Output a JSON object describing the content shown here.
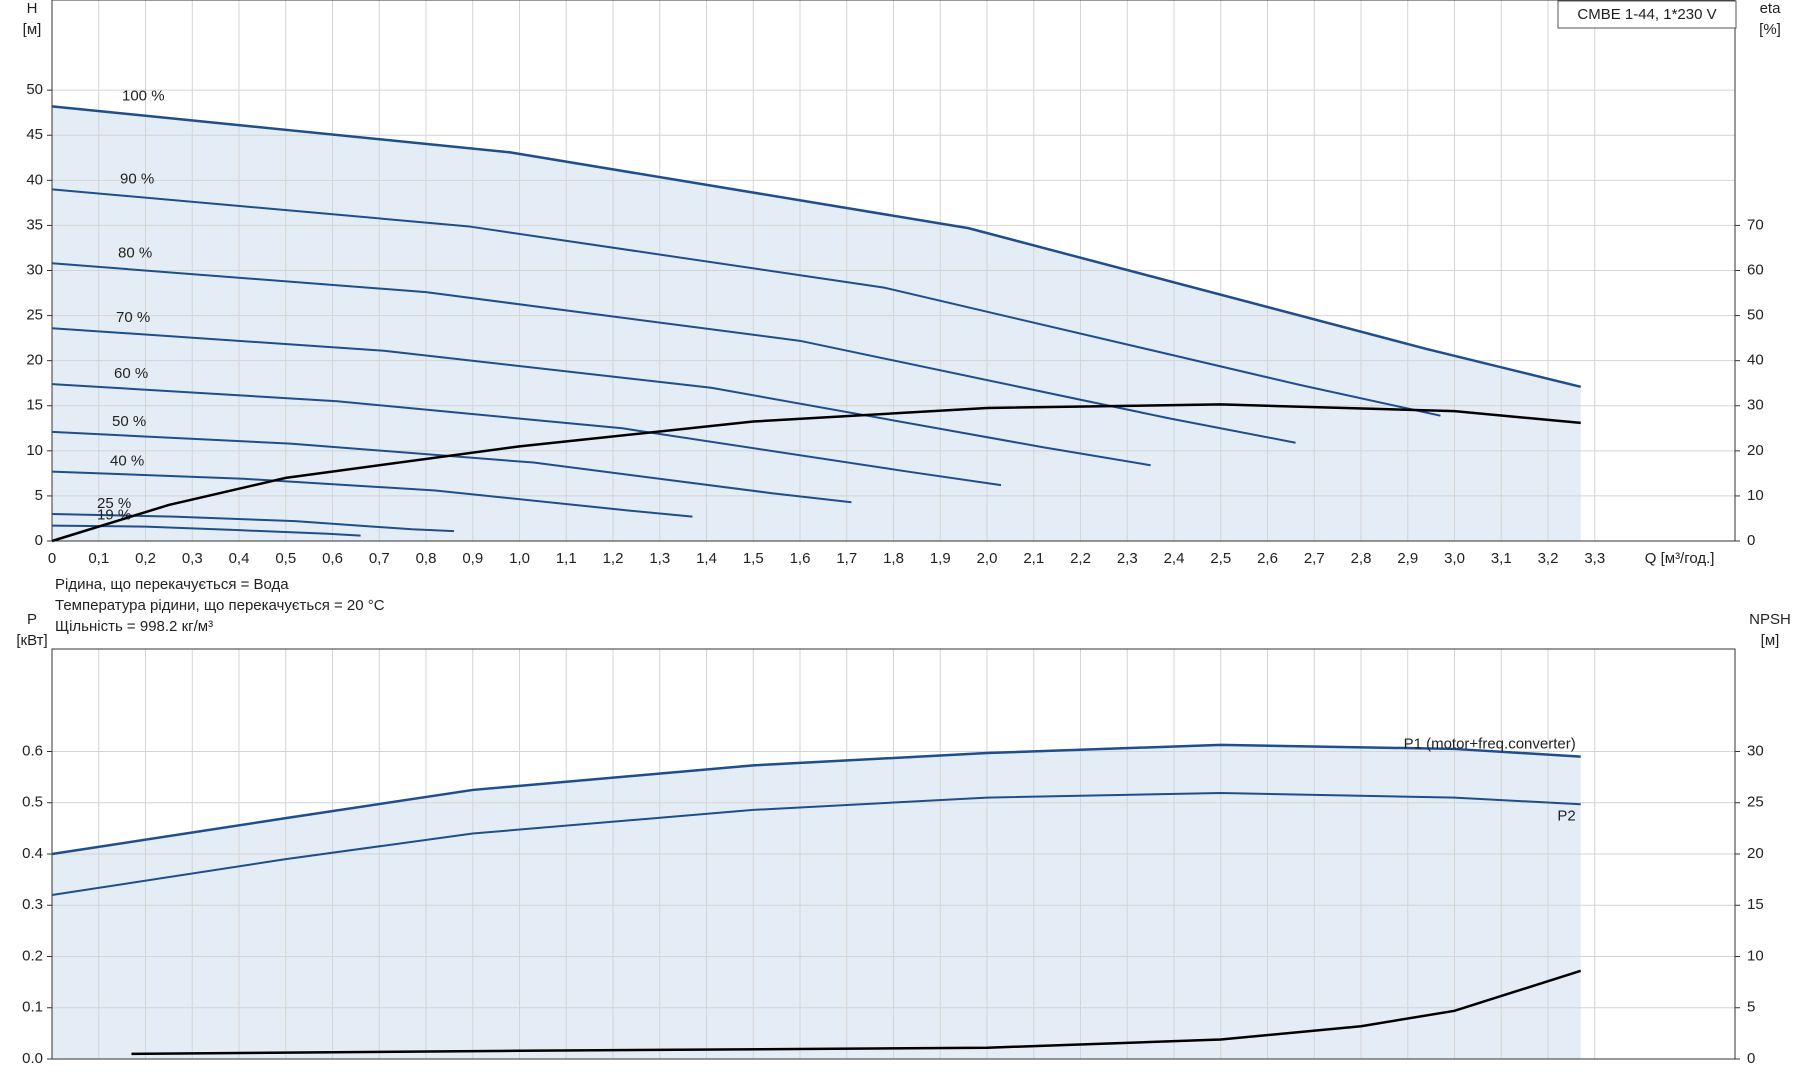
{
  "chart_data": [
    {
      "type": "line",
      "legend_title": "CMBE 1-44, 1*230 V",
      "ylabel": "H",
      "ylabel_unit": "[м]",
      "y2label": "eta",
      "y2label_unit": "[%]",
      "xlabel": "Q [м³/год.]",
      "notes": [
        "Рідина, що перекачується = Вода",
        "Температура рідини, що перекачується = 20 °C",
        "Щільність = 998.2 кг/м³"
      ],
      "xlim": [
        0,
        3.6
      ],
      "ylim": [
        0,
        60
      ],
      "y2lim": [
        0,
        120
      ],
      "grid": true,
      "xticks": [
        0,
        {
          "value": 0.1,
          "label": "0,1"
        },
        {
          "value": 0.2,
          "label": "0,2"
        },
        {
          "value": 0.3,
          "label": "0,3"
        },
        {
          "value": 0.4,
          "label": "0,4"
        },
        {
          "value": 0.5,
          "label": "0,5"
        },
        {
          "value": 0.6,
          "label": "0,6"
        },
        {
          "value": 0.7,
          "label": "0,7"
        },
        {
          "value": 0.8,
          "label": "0,8"
        },
        {
          "value": 0.9,
          "label": "0,9"
        },
        {
          "value": 1.0,
          "label": "1,0"
        },
        {
          "value": 1.1,
          "label": "1,1"
        },
        {
          "value": 1.2,
          "label": "1,2"
        },
        {
          "value": 1.3,
          "label": "1,3"
        },
        {
          "value": 1.4,
          "label": "1,4"
        },
        {
          "value": 1.5,
          "label": "1,5"
        },
        {
          "value": 1.6,
          "label": "1,6"
        },
        {
          "value": 1.7,
          "label": "1,7"
        },
        {
          "value": 1.8,
          "label": "1,8"
        },
        {
          "value": 1.9,
          "label": "1,9"
        },
        {
          "value": 2.0,
          "label": "2,0"
        },
        {
          "value": 2.1,
          "label": "2,1"
        },
        {
          "value": 2.2,
          "label": "2,2"
        },
        {
          "value": 2.3,
          "label": "2,3"
        },
        {
          "value": 2.4,
          "label": "2,4"
        },
        {
          "value": 2.5,
          "label": "2,5"
        },
        {
          "value": 2.6,
          "label": "2,6"
        },
        {
          "value": 2.7,
          "label": "2,7"
        },
        {
          "value": 2.8,
          "label": "2,8"
        },
        {
          "value": 2.9,
          "label": "2,9"
        },
        {
          "value": 3.0,
          "label": "3,0"
        },
        {
          "value": 3.1,
          "label": "3,1"
        },
        {
          "value": 3.2,
          "label": "3,2"
        },
        {
          "value": 3.3,
          "label": "3,3"
        }
      ],
      "yticks": [
        0,
        5,
        10,
        15,
        20,
        25,
        30,
        35,
        40,
        45,
        50
      ],
      "y2ticks": [
        0,
        10,
        20,
        30,
        40,
        50,
        60,
        70
      ],
      "series": [
        {
          "name": "100 %",
          "color": "#1f4e8c",
          "x": [
            0,
            0.98,
            1.96,
            2.94,
            3.27
          ],
          "values": [
            48.2,
            43.1,
            34.7,
            21.3,
            17.1
          ]
        },
        {
          "name": "90 %",
          "color": "#1f4e8c",
          "x": [
            0,
            0.89,
            1.78,
            2.67,
            2.97
          ],
          "values": [
            39.0,
            34.9,
            28.1,
            17.3,
            13.9
          ]
        },
        {
          "name": "80 %",
          "color": "#1f4e8c",
          "x": [
            0,
            0.8,
            1.6,
            2.39,
            2.66
          ],
          "values": [
            30.8,
            27.6,
            22.2,
            13.6,
            10.9
          ]
        },
        {
          "name": "70 %",
          "color": "#1f4e8c",
          "x": [
            0,
            0.71,
            1.41,
            2.12,
            2.35
          ],
          "values": [
            23.6,
            21.1,
            17.0,
            10.4,
            8.4
          ]
        },
        {
          "name": "60 %",
          "color": "#1f4e8c",
          "x": [
            0,
            0.61,
            1.22,
            1.83,
            2.03
          ],
          "values": [
            17.4,
            15.5,
            12.5,
            7.7,
            6.2
          ]
        },
        {
          "name": "50 %",
          "color": "#1f4e8c",
          "x": [
            0,
            0.51,
            1.03,
            1.54,
            1.71
          ],
          "values": [
            12.1,
            10.8,
            8.7,
            5.3,
            4.3
          ]
        },
        {
          "name": "40 %",
          "color": "#1f4e8c",
          "x": [
            0,
            0.41,
            0.82,
            1.23,
            1.37
          ],
          "values": [
            7.7,
            6.9,
            5.6,
            3.4,
            2.7
          ]
        },
        {
          "name": "25 %",
          "color": "#1f4e8c",
          "x": [
            0,
            0.26,
            0.52,
            0.77,
            0.86
          ],
          "values": [
            3.0,
            2.7,
            2.2,
            1.3,
            1.1
          ]
        },
        {
          "name": "19 %",
          "color": "#1f4e8c",
          "x": [
            0,
            0.2,
            0.4,
            0.59,
            0.66
          ],
          "values": [
            1.7,
            1.6,
            1.2,
            0.8,
            0.6
          ]
        },
        {
          "color": "#000000",
          "axis": "y2",
          "x": [
            0,
            0.25,
            0.5,
            1.0,
            1.5,
            2.0,
            2.5,
            3.0,
            3.27
          ],
          "values": [
            0,
            8,
            14,
            21,
            26.5,
            29.5,
            30.3,
            28.8,
            26.2
          ]
        }
      ]
    },
    {
      "type": "line",
      "ylabel": "P",
      "ylabel_unit": "[кВт]",
      "y2label": "NPSH",
      "y2label_unit": "[м]",
      "xlim": [
        0,
        3.6
      ],
      "ylim": [
        0,
        0.8
      ],
      "y2lim": [
        0,
        40
      ],
      "grid": true,
      "xticks": [
        0,
        0.1,
        0.2,
        0.3,
        0.4,
        0.5,
        0.6,
        0.7,
        0.8,
        0.9,
        1,
        1.1,
        1.2,
        1.3,
        1.4,
        1.5,
        1.6,
        1.7,
        1.8,
        1.9,
        2,
        2.1,
        2.2,
        2.3,
        2.4,
        2.5,
        2.6,
        2.7,
        2.8,
        2.9,
        3,
        3.1,
        3.2,
        3.3
      ],
      "yticks": [
        {
          "value": 0,
          "label": "0.0"
        },
        0.1,
        0.2,
        0.3,
        0.4,
        0.5,
        0.6
      ],
      "y2ticks": [
        0,
        5,
        10,
        15,
        20,
        25,
        30
      ],
      "series": [
        {
          "name": "P1 (motor+freq.converter)",
          "color": "#1f4e8c",
          "x": [
            0,
            0.5,
            0.9,
            1.5,
            2.0,
            2.5,
            3.0,
            3.27
          ],
          "values": [
            0.4,
            0.47,
            0.525,
            0.573,
            0.597,
            0.613,
            0.605,
            0.59
          ]
        },
        {
          "name": "P2",
          "color": "#1f4e8c",
          "x": [
            0,
            0.5,
            0.9,
            1.5,
            2.0,
            2.5,
            3.0,
            3.27
          ],
          "values": [
            0.32,
            0.39,
            0.44,
            0.486,
            0.51,
            0.519,
            0.51,
            0.497
          ]
        },
        {
          "color": "#000000",
          "axis": "y2",
          "x": [
            0.17,
            1.0,
            2.0,
            2.5,
            2.8,
            3.0,
            3.27
          ],
          "values": [
            0.5,
            0.8,
            1.1,
            1.9,
            3.2,
            4.7,
            8.6
          ]
        }
      ]
    }
  ]
}
